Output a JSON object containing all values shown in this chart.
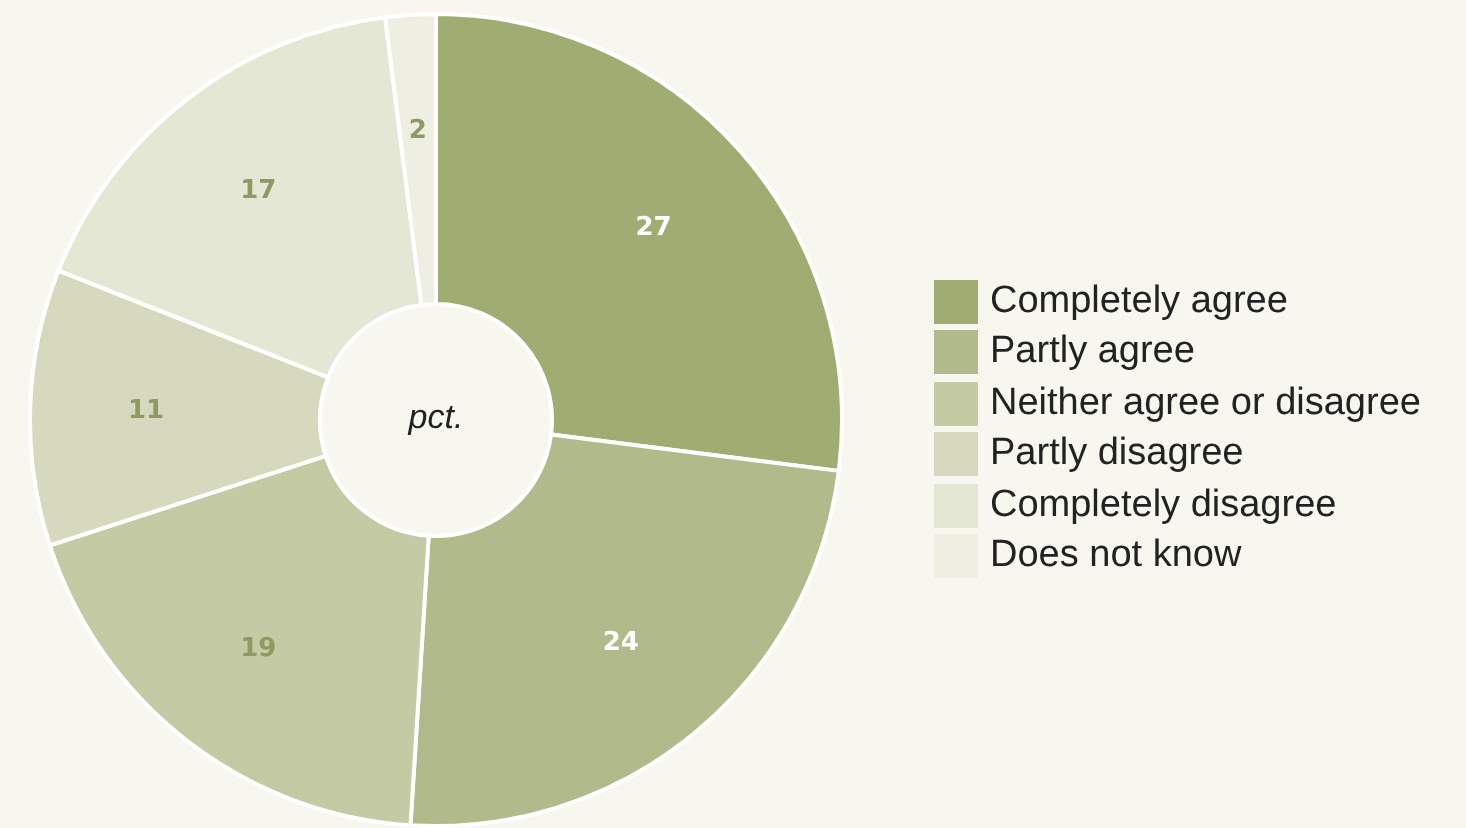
{
  "chart_data": {
    "type": "donut",
    "categories": [
      "Completely agree",
      "Partly agree",
      "Neither agree or disagree",
      "Partly disagree",
      "Completely disagree",
      "Does not know"
    ],
    "values": [
      27,
      24,
      19,
      11,
      17,
      2
    ],
    "colors": [
      "#a0ad72",
      "#b1ba8b",
      "#c4caa4",
      "#d6d9be",
      "#e4e7d4",
      "#eeefe2"
    ],
    "data_labels": true,
    "legend": "right",
    "annotations": [
      "pct."
    ]
  }
}
